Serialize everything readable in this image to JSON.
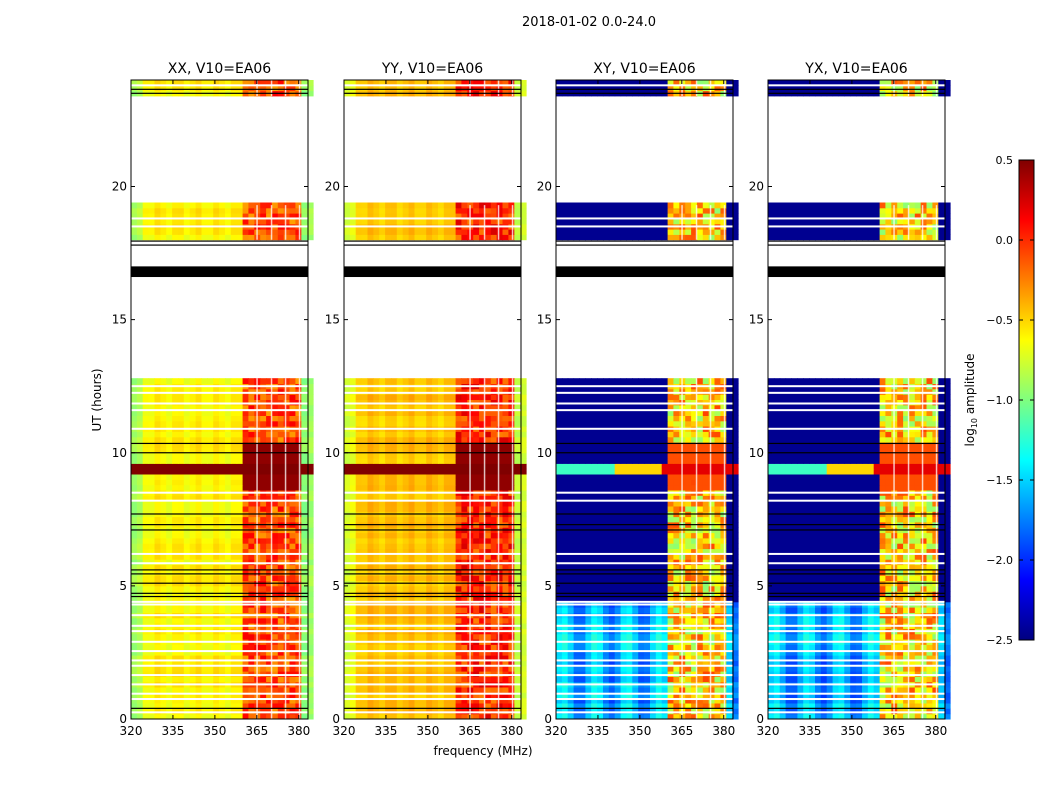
{
  "chart_data": {
    "type": "heatmap",
    "title": "2018-01-02 0.0-24.0",
    "xlabel": "frequency (MHz)",
    "ylabel": "UT (hours)",
    "xlim": [
      320,
      383.3
    ],
    "ylim": [
      0,
      24
    ],
    "xticks": [
      320,
      335,
      350,
      365,
      380
    ],
    "yticks": [
      0,
      5,
      10,
      15,
      20
    ],
    "colormap": "jet",
    "colorbar": {
      "label": "log10 amplitude",
      "label_main": "log",
      "label_sub": "10",
      "label_rest": " amplitude",
      "range": [
        -2.5,
        0.5
      ],
      "ticks": [
        "0.5",
        "0.0",
        "−0.5",
        "−1.0",
        "−1.5",
        "−2.0",
        "−2.5"
      ],
      "tick_values": [
        0.5,
        0.0,
        -0.5,
        -1.0,
        -1.5,
        -2.0,
        -2.5
      ]
    },
    "data_time_ranges": [
      [
        0,
        12.8
      ],
      [
        18.0,
        19.3
      ],
      [
        23.4,
        24.0
      ]
    ],
    "hot_band_mhz": [
      360,
      380
    ],
    "flagged_black_bands": [
      [
        16.6,
        17.0
      ]
    ],
    "black_lines": [
      0.4,
      4.6,
      4.72,
      5.1,
      5.45,
      5.6,
      7.1,
      7.3,
      7.7,
      10.0,
      10.35,
      17.8,
      17.95,
      23.5,
      23.65
    ],
    "white_lines": [
      0.25,
      0.75,
      0.95,
      1.3,
      1.65,
      2.0,
      2.2,
      2.55,
      2.9,
      3.3,
      3.5,
      3.9,
      4.3,
      4.4,
      5.85,
      6.2,
      8.2,
      8.5,
      10.9,
      11.6,
      11.85,
      12.5,
      12.25,
      18.5,
      18.8,
      23.8
    ],
    "panels": [
      {
        "title": "XX, V10=EA06",
        "pol": "XX",
        "base_log_amp": -0.6,
        "hot_log_amp": -0.1,
        "rfi_band_log_amp": 0.5
      },
      {
        "title": "YY, V10=EA06",
        "pol": "YY",
        "base_log_amp": -0.45,
        "hot_log_amp": 0.0,
        "rfi_band_log_amp": 0.5
      },
      {
        "title": "XY, V10=EA06",
        "pol": "XY",
        "base_log_amp": -2.45,
        "early_log_amp": -1.6,
        "hot_log_amp": -0.7,
        "rfi_band_log_amp": 0.2
      },
      {
        "title": "YX, V10=EA06",
        "pol": "YX",
        "base_log_amp": -2.45,
        "early_log_amp": -1.6,
        "hot_log_amp": -0.7,
        "rfi_band_log_amp": 0.2
      }
    ]
  }
}
